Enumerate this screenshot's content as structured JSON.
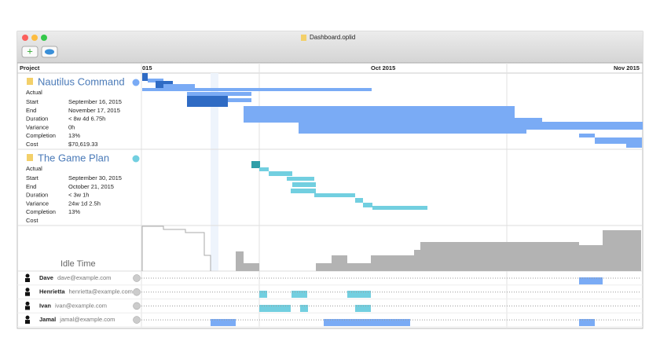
{
  "window": {
    "title": "Dashboard.oplid"
  },
  "header": {
    "column": "Project",
    "timeline": [
      "015",
      "Oct 2015",
      "Nov 2015"
    ]
  },
  "projects": [
    {
      "name": "Nautilus Command",
      "mode": "Actual",
      "fields": [
        {
          "label": "Start",
          "value": "September 16, 2015"
        },
        {
          "label": "End",
          "value": "November 17, 2015"
        },
        {
          "label": "Duration",
          "value": "< 8w 4d 6.75h"
        },
        {
          "label": "Variance",
          "value": "0h"
        },
        {
          "label": "Completion",
          "value": "13%"
        },
        {
          "label": "Cost",
          "value": "$70,619.33"
        }
      ]
    },
    {
      "name": "The Game Plan",
      "mode": "Actual",
      "fields": [
        {
          "label": "Start",
          "value": "September 30, 2015"
        },
        {
          "label": "End",
          "value": "October 21, 2015"
        },
        {
          "label": "Duration",
          "value": "< 3w 1h"
        },
        {
          "label": "Variance",
          "value": "24w 1d 2.5h"
        },
        {
          "label": "Completion",
          "value": "13%"
        },
        {
          "label": "Cost"
        }
      ]
    }
  ],
  "idle_time": "Idle Time",
  "resources": [
    {
      "name": "Dave",
      "email": "dave@example.com"
    },
    {
      "name": "Henrietta",
      "email": "henrietta@example.com"
    },
    {
      "name": "Ivan",
      "email": "ivan@example.com"
    },
    {
      "name": "Jamal",
      "email": "jamal@example.com"
    }
  ]
}
